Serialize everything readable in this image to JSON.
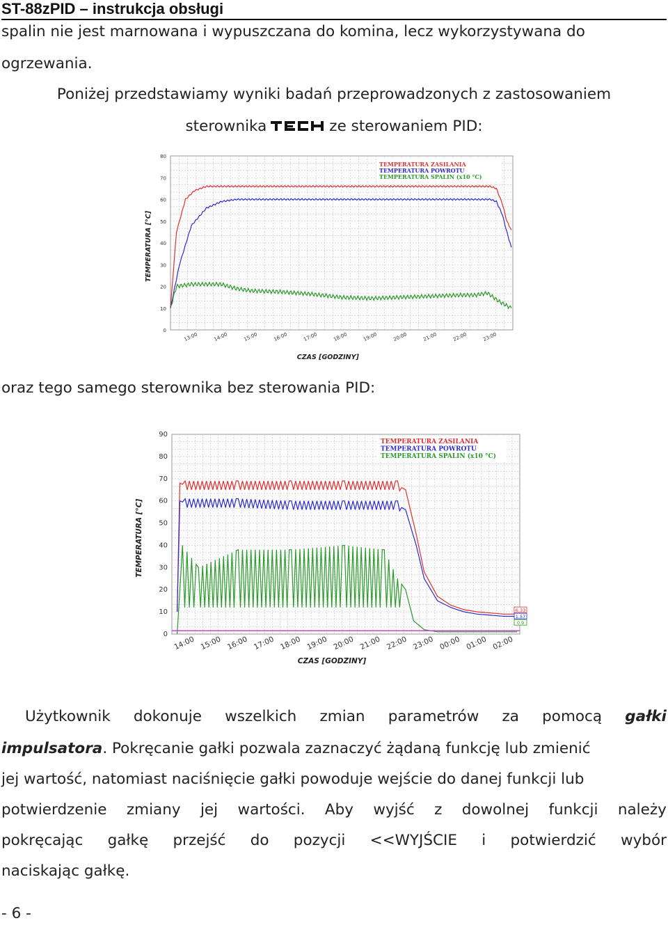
{
  "header": {
    "title": "ST-88zPID – instrukcja obsługi"
  },
  "intro": {
    "line1": "spalin nie jest marnowana i wypuszczana do komina, lecz wykorzystywana do",
    "line2": "ogrzewania.",
    "line3": "Poniżej przedstawiamy wyniki badań przeprowadzonych z zastosowaniem",
    "line4_pre": "sterownika",
    "logo_text": "TECH",
    "line4_post": "ze sterowaniem PID:"
  },
  "middle_text": "oraz tego samego sterownika bez sterowania PID:",
  "body_paragraph": {
    "l1": [
      "Użytkownik",
      "dokonuje",
      "wszelkich",
      "zmian",
      "parametrów",
      "za",
      "pomocą"
    ],
    "l1_bold": "gałki",
    "l2_bold": "impulsatora",
    "l2_rest": ". Pokręcanie gałki pozwala zaznaczyć żądaną funkcję lub zmienić",
    "l3": "jej wartość, natomiast naciśnięcie gałki powoduje wejście do danej funkcji lub",
    "l4": [
      "potwierdzenie",
      "zmiany",
      "jej",
      "wartości.",
      "Aby",
      "wyjść",
      "z",
      "dowolnej",
      "funkcji",
      "należy"
    ],
    "l5": [
      "pokręcając",
      "gałkę",
      "przejść",
      "do",
      "pozycji",
      "<<WYJŚCIE",
      "i",
      "potwierdzić",
      "wybór"
    ],
    "l6": "naciskając gałkę."
  },
  "page_number": "- 6 -",
  "colors": {
    "supply": "#e03030",
    "return": "#2b2bd0",
    "flue": "#2a9a2a",
    "grid": "#c8c8c8"
  },
  "chart_data": [
    {
      "type": "line",
      "title": "",
      "xlabel": "CZAS [GODZINY]",
      "ylabel": "TEMPERATURA [°C]",
      "ylim": [
        0,
        80
      ],
      "yticks": [
        "0",
        "10",
        "20",
        "30",
        "40",
        "50",
        "60",
        "70",
        "80"
      ],
      "xticks": [
        "13:00",
        "14:00",
        "15:00",
        "16:00",
        "17:00",
        "18:00",
        "19:00",
        "20:00",
        "21:00",
        "22:00",
        "23:00"
      ],
      "legend": [
        "TEMPERATURA ZASILANIA",
        "TEMPERATURA POWROTU",
        "TEMPERATURA SPALIN (x10 °C)"
      ],
      "legend_position": "top-right",
      "grid": true,
      "series": [
        {
          "name": "TEMPERATURA ZASILANIA",
          "x": [
            12.3,
            12.5,
            12.8,
            13.1,
            13.5,
            14.0,
            15.0,
            17.0,
            19.0,
            21.0,
            23.0,
            23.2,
            23.4,
            23.55,
            23.7
          ],
          "y": [
            10,
            45,
            60,
            64,
            66,
            66,
            66,
            66,
            66,
            66,
            66,
            65,
            58,
            50,
            46
          ]
        },
        {
          "name": "TEMPERATURA POWROTU",
          "x": [
            12.3,
            12.6,
            13.0,
            13.5,
            14.0,
            14.5,
            15.0,
            17.0,
            19.0,
            21.0,
            23.0,
            23.2,
            23.4,
            23.55,
            23.7
          ],
          "y": [
            10,
            30,
            48,
            56,
            59,
            60,
            60,
            60,
            60,
            60,
            60,
            59,
            53,
            45,
            38
          ]
        },
        {
          "name": "TEMPERATURA SPALIN (x10 °C)",
          "x": [
            12.3,
            12.5,
            13.0,
            13.5,
            14.0,
            14.5,
            15.0,
            16.0,
            17.0,
            18.0,
            19.0,
            20.0,
            21.0,
            22.0,
            22.5,
            22.9,
            23.3,
            23.7
          ],
          "y": [
            10,
            20,
            21,
            21,
            21,
            19,
            18,
            17.5,
            16.5,
            15,
            14.5,
            15,
            15.5,
            16,
            16,
            17,
            13,
            10
          ]
        }
      ]
    },
    {
      "type": "line",
      "title": "",
      "xlabel": "CZAS [GODZINY]",
      "ylabel": "TEMPERATURA [°C]",
      "ylim": [
        0,
        90
      ],
      "yticks": [
        "0",
        "10",
        "20",
        "30",
        "40",
        "50",
        "60",
        "70",
        "80",
        "90"
      ],
      "xticks": [
        "14:00",
        "15:00",
        "16:00",
        "17:00",
        "18:00",
        "19:00",
        "20:00",
        "21:00",
        "22:00",
        "23:00",
        "00:00",
        "01:00",
        "02:00"
      ],
      "legend": [
        "TEMPERATURA ZASILANIA",
        "TEMPERATURA POWROTU",
        "TEMPERATURA SPALIN (x10 °C)"
      ],
      "legend_position": "top-right",
      "grid": true,
      "end_labels": [
        "6.33",
        "1.57",
        "0.9"
      ],
      "series": [
        {
          "name": "TEMPERATURA ZASILANIA",
          "x": [
            13.7,
            13.8,
            14.0,
            16.0,
            18.0,
            20.0,
            22.0,
            22.3,
            22.7,
            23.0,
            23.5,
            24.0,
            24.5,
            25.0,
            26.0,
            26.5
          ],
          "y": [
            10,
            68,
            67,
            67,
            67,
            67,
            67,
            65,
            45,
            28,
            17,
            13,
            11,
            10,
            9,
            9
          ]
        },
        {
          "name": "TEMPERATURA POWROTU",
          "x": [
            13.7,
            13.8,
            14.0,
            16.0,
            18.0,
            20.0,
            22.0,
            22.3,
            22.7,
            23.0,
            23.5,
            24.0,
            24.5,
            25.0,
            26.0,
            26.5
          ],
          "y": [
            10,
            60,
            59,
            59,
            58,
            58,
            58,
            56,
            40,
            25,
            15,
            12,
            10,
            9,
            8,
            8
          ]
        },
        {
          "name": "TEMPERATURA SPALIN (x10 °C)",
          "x": [
            13.7,
            13.9,
            14.5,
            16.0,
            18.0,
            20.0,
            21.5,
            22.0,
            22.3,
            22.6,
            23.0,
            23.5,
            24.0,
            25.0,
            26.5
          ],
          "y": [
            0,
            40,
            30,
            38,
            38,
            40,
            38,
            25,
            20,
            6,
            2,
            1,
            1,
            1,
            1
          ],
          "oscillation_low": [
            12,
            12,
            12,
            12,
            12,
            12,
            12,
            12
          ]
        }
      ]
    }
  ]
}
